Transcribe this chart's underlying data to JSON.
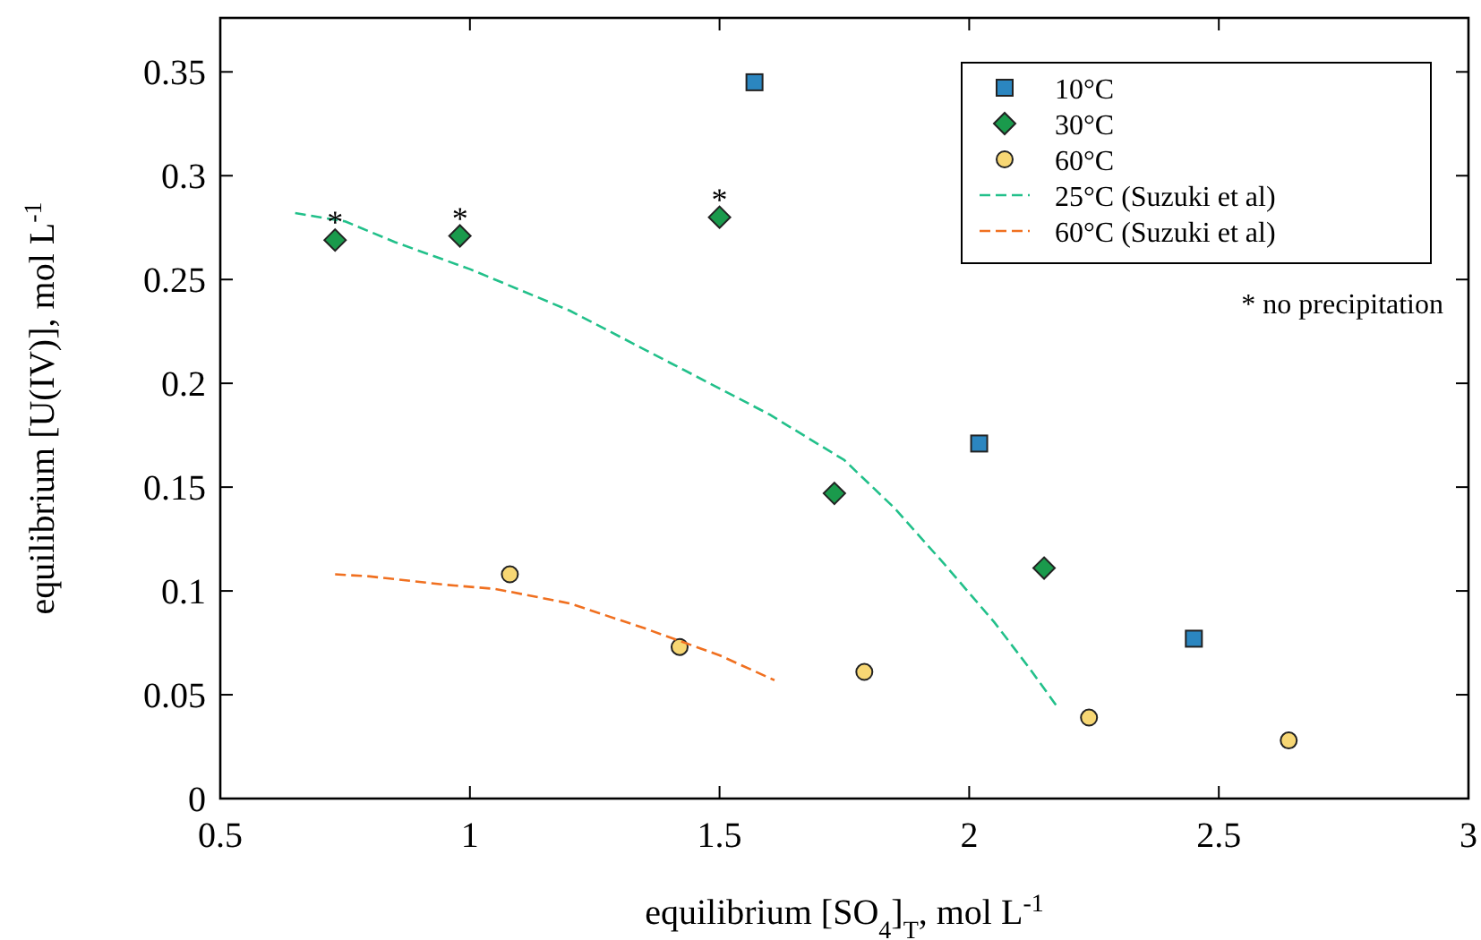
{
  "chart_data": {
    "type": "scatter",
    "xlabel": "equilibrium [SO$_{4}$]$_{T}$, mol L$^{-1}$",
    "ylabel": "equilibrium [U(IV)], mol L$^{-1}$",
    "xlim": [
      0.5,
      3
    ],
    "ylim": [
      0,
      0.376
    ],
    "xticks": [
      0.5,
      1,
      1.5,
      2,
      2.5,
      3
    ],
    "yticks": [
      0,
      0.05,
      0.1,
      0.15,
      0.2,
      0.25,
      0.3,
      0.35
    ],
    "grid": false,
    "legend": "top right",
    "series": [
      {
        "name": "10°C",
        "type": "scatter",
        "marker": "square",
        "color": "#2b86c0",
        "x": [
          1.57,
          2.02,
          2.45
        ],
        "values": [
          0.345,
          0.171,
          0.077
        ]
      },
      {
        "name": "30°C",
        "type": "scatter",
        "marker": "diamond",
        "color": "#1a9a4c",
        "x": [
          0.73,
          0.98,
          1.5,
          1.73,
          2.15
        ],
        "values": [
          0.269,
          0.271,
          0.28,
          0.147,
          0.111
        ]
      },
      {
        "name": "60°C",
        "type": "scatter",
        "marker": "circle",
        "color": "#f7d774",
        "x": [
          1.08,
          1.42,
          1.79,
          2.24,
          2.64
        ],
        "values": [
          0.108,
          0.073,
          0.061,
          0.039,
          0.028
        ]
      },
      {
        "name": "25°C (Suzuki et al)",
        "type": "line",
        "marker": "none",
        "line_style": "dashed",
        "color": "#22c08a",
        "x": [
          0.65,
          0.75,
          0.85,
          1.0,
          1.2,
          1.4,
          1.6,
          1.75,
          1.85,
          1.95,
          2.05,
          2.12,
          2.18
        ],
        "values": [
          0.282,
          0.278,
          0.268,
          0.255,
          0.235,
          0.21,
          0.185,
          0.163,
          0.14,
          0.113,
          0.085,
          0.063,
          0.043
        ]
      },
      {
        "name": "60°C (Suzuki et al)",
        "type": "line",
        "marker": "none",
        "line_style": "dashed",
        "color": "#f07020",
        "x": [
          0.73,
          0.8,
          0.95,
          1.05,
          1.2,
          1.35,
          1.5,
          1.61
        ],
        "values": [
          0.108,
          0.107,
          0.103,
          0.101,
          0.094,
          0.082,
          0.069,
          0.057
        ]
      }
    ],
    "annotations": [
      {
        "text": "*",
        "x": 0.73,
        "y": 0.269
      },
      {
        "text": "*",
        "x": 0.98,
        "y": 0.271
      },
      {
        "text": "*",
        "x": 1.5,
        "y": 0.28
      },
      "* no precipitation"
    ]
  }
}
